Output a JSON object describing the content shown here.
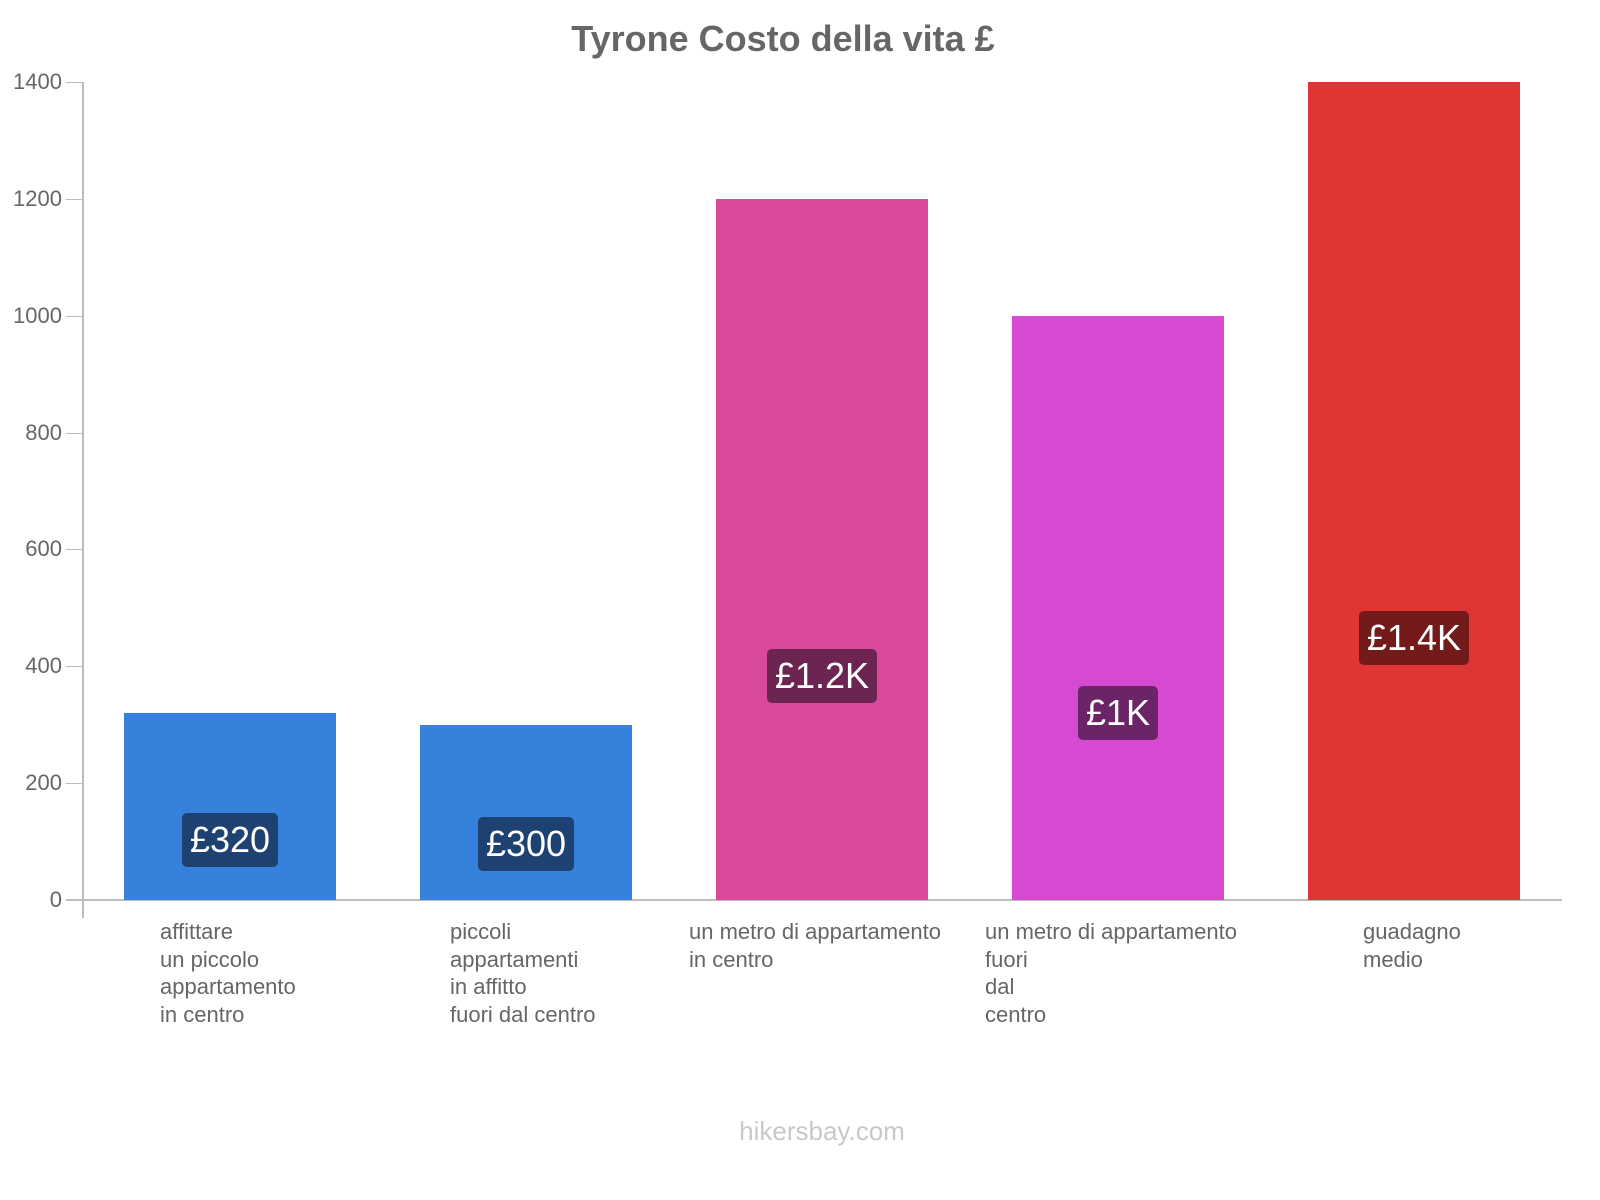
{
  "header": {
    "title": "Tyrone Costo della vita £"
  },
  "footer": {
    "watermark": "hikersbay.com"
  },
  "y_axis": {
    "ticks": [
      "0",
      "200",
      "400",
      "600",
      "800",
      "1000",
      "1200",
      "1400"
    ]
  },
  "bars": [
    {
      "label_lines": [
        "affittare",
        "un piccolo",
        "appartamento",
        "in centro"
      ],
      "value": 320,
      "display": "£320",
      "color": "#3681dc",
      "badge_color": "#1d4170"
    },
    {
      "label_lines": [
        "piccoli",
        "appartamenti",
        "in affitto",
        "fuori dal centro"
      ],
      "value": 300,
      "display": "£300",
      "color": "#3681dc",
      "badge_color": "#1d4170"
    },
    {
      "label_lines": [
        "un metro di appartamento",
        "in centro"
      ],
      "value": 1200,
      "display": "£1.2K",
      "color": "#d94a9b",
      "badge_color": "#6c2450"
    },
    {
      "label_lines": [
        "un metro di appartamento",
        "fuori",
        "dal",
        "centro"
      ],
      "value": 1000,
      "display": "£1K",
      "color": "#d64ad2",
      "badge_color": "#6c2468"
    },
    {
      "label_lines": [
        "guadagno",
        "medio"
      ],
      "value": 1400,
      "display": "£1.4K",
      "color": "#e03535",
      "badge_color": "#731a1a"
    }
  ],
  "chart_data": {
    "type": "bar",
    "title": "Tyrone Costo della vita £",
    "categories": [
      "affittare un piccolo appartamento in centro",
      "piccoli appartamenti in affitto fuori dal centro",
      "un metro di appartamento in centro",
      "un metro di appartamento fuori dal centro",
      "guadagno medio"
    ],
    "values": [
      320,
      300,
      1200,
      1000,
      1400
    ],
    "data_labels": [
      "£320",
      "£300",
      "£1.2K",
      "£1K",
      "£1.4K"
    ],
    "xlabel": "",
    "ylabel": "",
    "ylim": [
      0,
      1400
    ],
    "yticks": [
      0,
      200,
      400,
      600,
      800,
      1000,
      1200,
      1400
    ],
    "grid": false,
    "legend": "none"
  }
}
